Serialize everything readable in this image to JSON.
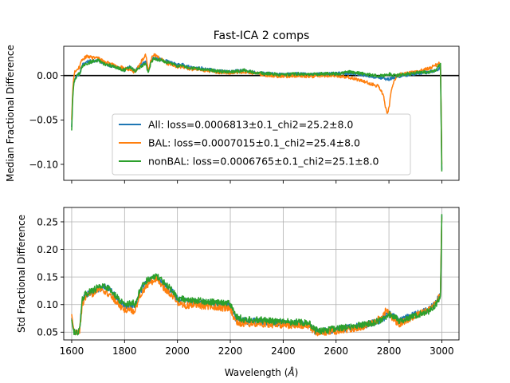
{
  "figure": {
    "title": "Fast-ICA 2 comps",
    "xlabel_main": "Wavelength (",
    "xlabel_unit": "Å",
    "xlabel_close": ")"
  },
  "colors": {
    "All": "#1f77b4",
    "BAL": "#ff7f0e",
    "nonBAL": "#2ca02c",
    "zero_line": "#000000",
    "grid": "#b0b0b0"
  },
  "chart_data": [
    {
      "type": "line",
      "title": "Fast-ICA 2 comps",
      "ylabel": "Median Fractional Difference",
      "xlim": [
        1570,
        3065
      ],
      "ylim": [
        -0.118,
        0.033
      ],
      "x_ticks": [
        1600,
        1800,
        2000,
        2200,
        2400,
        2600,
        2800,
        3000
      ],
      "x_tick_labels_visible": false,
      "y_ticks": [
        0.0,
        -0.05,
        -0.1
      ],
      "y_tick_labels": [
        "0.00",
        "−0.05",
        "−0.10"
      ],
      "grid": false,
      "hline": 0.0,
      "legend_position": "center-left",
      "legend": [
        "All: loss=0.0006813±0.1_chi2=25.2±8.0",
        "BAL: loss=0.0007015±0.1_chi2=25.4±8.0",
        "nonBAL: loss=0.0006765±0.1_chi2=25.1±8.0"
      ],
      "series": [
        {
          "name": "All",
          "x": [
            1600,
            1603,
            1605,
            1608,
            1612,
            1620,
            1630,
            1640,
            1660,
            1680,
            1700,
            1720,
            1740,
            1760,
            1780,
            1800,
            1820,
            1840,
            1860,
            1880,
            1890,
            1900,
            1905,
            1910,
            1920,
            1940,
            1960,
            1980,
            2000,
            2020,
            2040,
            2060,
            2080,
            2100,
            2150,
            2200,
            2250,
            2300,
            2350,
            2400,
            2450,
            2500,
            2550,
            2600,
            2650,
            2700,
            2750,
            2780,
            2790,
            2800,
            2810,
            2820,
            2850,
            2900,
            2950,
            2980,
            2990,
            2995,
            2998,
            3000
          ],
          "y": [
            -0.058,
            -0.03,
            -0.018,
            -0.008,
            -0.004,
            0.0,
            0.002,
            0.012,
            0.016,
            0.016,
            0.018,
            0.014,
            0.012,
            0.01,
            0.008,
            0.006,
            0.01,
            0.005,
            0.012,
            0.015,
            0.004,
            0.016,
            0.018,
            0.02,
            0.019,
            0.018,
            0.016,
            0.014,
            0.012,
            0.012,
            0.01,
            0.008,
            0.009,
            0.008,
            0.005,
            0.004,
            0.006,
            0.003,
            0.002,
            0.001,
            0.002,
            0.001,
            0.002,
            0.002,
            0.003,
            0.001,
            -0.002,
            -0.003,
            -0.004,
            -0.004,
            -0.003,
            -0.002,
            0.0,
            0.002,
            0.004,
            0.006,
            0.008,
            0.008,
            -0.06,
            -0.106
          ]
        },
        {
          "name": "BAL",
          "x": [
            1600,
            1603,
            1605,
            1608,
            1612,
            1620,
            1630,
            1640,
            1660,
            1680,
            1700,
            1720,
            1740,
            1760,
            1780,
            1800,
            1820,
            1840,
            1860,
            1880,
            1890,
            1900,
            1905,
            1910,
            1920,
            1940,
            1960,
            1980,
            2000,
            2020,
            2040,
            2060,
            2080,
            2100,
            2150,
            2200,
            2250,
            2300,
            2350,
            2400,
            2450,
            2500,
            2550,
            2600,
            2650,
            2700,
            2720,
            2740,
            2760,
            2770,
            2780,
            2785,
            2790,
            2795,
            2800,
            2805,
            2810,
            2820,
            2830,
            2850,
            2900,
            2950,
            2980,
            2990,
            2995,
            2998,
            3000
          ],
          "y": [
            -0.05,
            -0.025,
            -0.012,
            -0.002,
            0.004,
            0.006,
            0.01,
            0.018,
            0.022,
            0.02,
            0.02,
            0.016,
            0.014,
            0.012,
            0.01,
            0.008,
            0.006,
            0.004,
            0.014,
            0.024,
            0.006,
            0.018,
            0.022,
            0.024,
            0.022,
            0.018,
            0.014,
            0.012,
            0.01,
            0.01,
            0.008,
            0.007,
            0.007,
            0.006,
            0.004,
            0.003,
            0.004,
            0.002,
            0.0,
            -0.001,
            0.0,
            -0.001,
            0.0,
            0.0,
            -0.002,
            -0.006,
            -0.008,
            -0.01,
            -0.012,
            -0.016,
            -0.024,
            -0.032,
            -0.04,
            -0.042,
            -0.036,
            -0.026,
            -0.016,
            -0.006,
            0.0,
            0.002,
            0.004,
            0.008,
            0.012,
            0.014,
            0.012,
            -0.05,
            -0.1
          ]
        },
        {
          "name": "nonBAL",
          "x": [
            1600,
            1603,
            1605,
            1608,
            1612,
            1620,
            1630,
            1640,
            1660,
            1680,
            1700,
            1720,
            1740,
            1760,
            1780,
            1800,
            1820,
            1840,
            1860,
            1880,
            1890,
            1900,
            1905,
            1910,
            1920,
            1940,
            1960,
            1980,
            2000,
            2020,
            2040,
            2060,
            2080,
            2100,
            2150,
            2200,
            2250,
            2300,
            2350,
            2400,
            2450,
            2500,
            2550,
            2600,
            2650,
            2700,
            2750,
            2780,
            2790,
            2800,
            2810,
            2820,
            2850,
            2900,
            2950,
            2980,
            2990,
            2995,
            2998,
            3000
          ],
          "y": [
            -0.062,
            -0.032,
            -0.02,
            -0.01,
            -0.004,
            0.0,
            0.002,
            0.01,
            0.014,
            0.016,
            0.017,
            0.013,
            0.012,
            0.01,
            0.008,
            0.006,
            0.01,
            0.005,
            0.01,
            0.014,
            0.002,
            0.015,
            0.017,
            0.019,
            0.018,
            0.017,
            0.015,
            0.013,
            0.011,
            0.011,
            0.009,
            0.008,
            0.008,
            0.007,
            0.005,
            0.004,
            0.006,
            0.003,
            0.002,
            0.001,
            0.002,
            0.001,
            0.002,
            0.002,
            0.004,
            0.002,
            0.0,
            0.0,
            0.001,
            0.002,
            0.001,
            0.0,
            0.001,
            0.003,
            0.004,
            0.006,
            0.012,
            0.014,
            -0.06,
            -0.108
          ]
        }
      ]
    },
    {
      "type": "line",
      "ylabel": "Std Fractional Difference",
      "xlabel": "Wavelength (Å)",
      "xlim": [
        1570,
        3065
      ],
      "ylim": [
        0.036,
        0.276
      ],
      "x_ticks": [
        1600,
        1800,
        2000,
        2200,
        2400,
        2600,
        2800,
        3000
      ],
      "x_tick_labels": [
        "1600",
        "1800",
        "2000",
        "2200",
        "2400",
        "2600",
        "2800",
        "3000"
      ],
      "y_ticks": [
        0.05,
        0.1,
        0.15,
        0.2,
        0.25
      ],
      "y_tick_labels": [
        "0.05",
        "0.10",
        "0.15",
        "0.20",
        "0.25"
      ],
      "grid": true,
      "series": [
        {
          "name": "All",
          "x": [
            1600,
            1605,
            1610,
            1620,
            1630,
            1640,
            1650,
            1660,
            1680,
            1700,
            1720,
            1740,
            1760,
            1780,
            1800,
            1820,
            1830,
            1840,
            1860,
            1880,
            1900,
            1920,
            1940,
            1960,
            1980,
            2000,
            2020,
            2040,
            2060,
            2080,
            2100,
            2150,
            2200,
            2220,
            2240,
            2260,
            2300,
            2350,
            2400,
            2450,
            2500,
            2520,
            2540,
            2560,
            2600,
            2650,
            2700,
            2750,
            2780,
            2800,
            2820,
            2840,
            2860,
            2900,
            2950,
            2980,
            2990,
            2995,
            2998,
            3000
          ],
          "y": [
            0.075,
            0.06,
            0.052,
            0.05,
            0.055,
            0.105,
            0.115,
            0.12,
            0.122,
            0.128,
            0.132,
            0.13,
            0.118,
            0.105,
            0.098,
            0.1,
            0.1,
            0.098,
            0.125,
            0.14,
            0.145,
            0.15,
            0.142,
            0.13,
            0.125,
            0.11,
            0.108,
            0.106,
            0.105,
            0.105,
            0.104,
            0.102,
            0.1,
            0.075,
            0.072,
            0.07,
            0.07,
            0.068,
            0.067,
            0.066,
            0.064,
            0.052,
            0.05,
            0.052,
            0.055,
            0.058,
            0.062,
            0.068,
            0.075,
            0.085,
            0.08,
            0.07,
            0.075,
            0.082,
            0.09,
            0.105,
            0.115,
            0.12,
            0.2,
            0.262
          ]
        },
        {
          "name": "BAL",
          "x": [
            1600,
            1605,
            1610,
            1620,
            1630,
            1640,
            1650,
            1660,
            1680,
            1700,
            1720,
            1740,
            1760,
            1780,
            1800,
            1820,
            1830,
            1840,
            1860,
            1880,
            1900,
            1920,
            1940,
            1960,
            1980,
            2000,
            2020,
            2040,
            2060,
            2080,
            2100,
            2150,
            2200,
            2220,
            2240,
            2260,
            2300,
            2350,
            2400,
            2450,
            2500,
            2520,
            2540,
            2560,
            2600,
            2650,
            2700,
            2750,
            2780,
            2790,
            2800,
            2820,
            2840,
            2860,
            2900,
            2950,
            2980,
            2990,
            2995,
            2998,
            3000
          ],
          "y": [
            0.082,
            0.062,
            0.05,
            0.048,
            0.052,
            0.1,
            0.11,
            0.115,
            0.12,
            0.13,
            0.125,
            0.118,
            0.11,
            0.098,
            0.09,
            0.092,
            0.088,
            0.09,
            0.118,
            0.132,
            0.14,
            0.148,
            0.135,
            0.125,
            0.118,
            0.102,
            0.1,
            0.098,
            0.1,
            0.098,
            0.097,
            0.095,
            0.092,
            0.068,
            0.066,
            0.065,
            0.066,
            0.064,
            0.063,
            0.062,
            0.06,
            0.05,
            0.048,
            0.05,
            0.052,
            0.055,
            0.06,
            0.07,
            0.08,
            0.092,
            0.085,
            0.072,
            0.064,
            0.07,
            0.08,
            0.09,
            0.105,
            0.115,
            0.12,
            0.21,
            0.258
          ]
        },
        {
          "name": "nonBAL",
          "x": [
            1600,
            1605,
            1610,
            1620,
            1630,
            1640,
            1650,
            1660,
            1680,
            1700,
            1720,
            1740,
            1760,
            1780,
            1800,
            1820,
            1830,
            1840,
            1860,
            1880,
            1900,
            1920,
            1940,
            1960,
            1980,
            2000,
            2020,
            2040,
            2060,
            2080,
            2100,
            2150,
            2200,
            2220,
            2240,
            2260,
            2300,
            2350,
            2400,
            2450,
            2500,
            2520,
            2540,
            2560,
            2600,
            2650,
            2700,
            2750,
            2780,
            2800,
            2820,
            2840,
            2860,
            2900,
            2950,
            2980,
            2990,
            2995,
            2998,
            3000
          ],
          "y": [
            0.072,
            0.058,
            0.05,
            0.048,
            0.054,
            0.108,
            0.118,
            0.122,
            0.125,
            0.132,
            0.135,
            0.128,
            0.12,
            0.108,
            0.1,
            0.102,
            0.104,
            0.1,
            0.128,
            0.142,
            0.148,
            0.152,
            0.145,
            0.135,
            0.128,
            0.112,
            0.11,
            0.108,
            0.108,
            0.107,
            0.106,
            0.104,
            0.102,
            0.078,
            0.075,
            0.072,
            0.073,
            0.07,
            0.069,
            0.068,
            0.066,
            0.054,
            0.052,
            0.054,
            0.056,
            0.06,
            0.063,
            0.068,
            0.074,
            0.082,
            0.078,
            0.07,
            0.074,
            0.08,
            0.088,
            0.102,
            0.112,
            0.118,
            0.195,
            0.264
          ]
        }
      ]
    }
  ]
}
